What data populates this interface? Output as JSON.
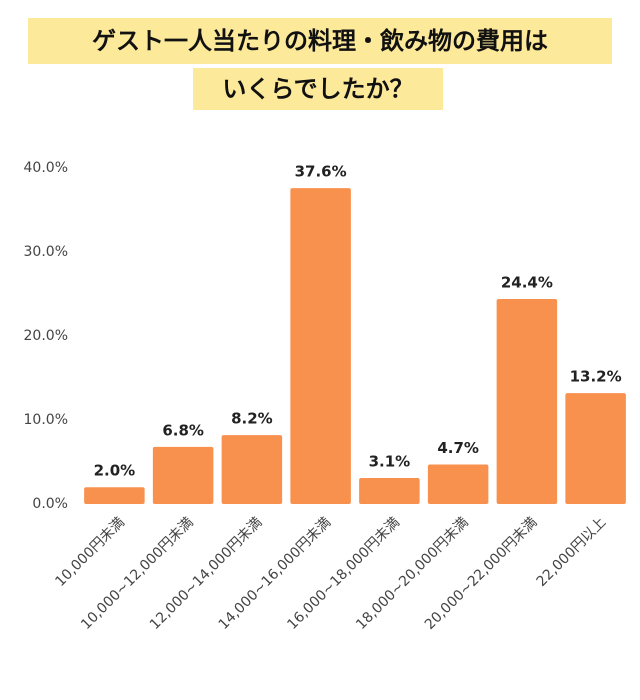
{
  "chart_data": {
    "type": "bar",
    "title": [
      "ゲスト一人当たりの料理・飲み物の費用は",
      "いくらでしたか？"
    ],
    "categories": [
      "10,000円未満",
      "10,000~12,000円未満",
      "12,000~14,000円未満",
      "14,000~16,000円未満",
      "16,000~18,000円未満",
      "18,000~20,000円未満",
      "20,000~22,000円未満",
      "22,000円以上"
    ],
    "values": [
      2.0,
      6.8,
      8.2,
      37.6,
      3.1,
      4.7,
      24.4,
      13.2
    ],
    "value_labels": [
      "2.0%",
      "6.8%",
      "8.2%",
      "37.6%",
      "3.1%",
      "4.7%",
      "24.4%",
      "13.2%"
    ],
    "color": "#f9914e",
    "ylim": [
      0,
      40
    ],
    "yticks": [
      {
        "value": 0,
        "label": "0.0%"
      },
      {
        "value": 10,
        "label": "10.0%"
      },
      {
        "value": 20,
        "label": "20.0%"
      },
      {
        "value": 30,
        "label": "30.0%"
      },
      {
        "value": 40,
        "label": "40.0%"
      }
    ],
    "grid": false
  }
}
